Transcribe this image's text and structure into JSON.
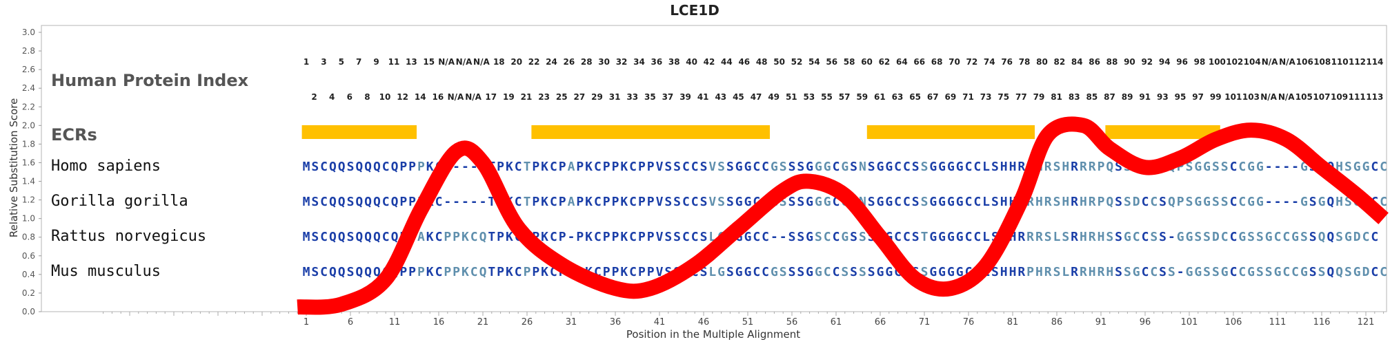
{
  "chart_data": {
    "type": "line",
    "title": "LCE1D",
    "xlabel": "Position in the Multiple Alignment",
    "ylabel": "Relative Substitution Score",
    "ylim": [
      0,
      3.0
    ],
    "xlim": [
      1,
      123
    ],
    "y_ticks": [
      "0.0",
      "0.2",
      "0.4",
      "0.6",
      "0.8",
      "1.0",
      "1.2",
      "1.4",
      "1.6",
      "1.8",
      "2.0",
      "2.2",
      "2.4",
      "2.6",
      "2.8",
      "3.0"
    ],
    "x_ticks": [
      1,
      6,
      11,
      16,
      21,
      26,
      31,
      36,
      41,
      46,
      51,
      56,
      61,
      66,
      71,
      76,
      81,
      86,
      91,
      96,
      101,
      106,
      111,
      116,
      121
    ],
    "grid": false,
    "series": [
      {
        "color": "#ff0000",
        "x": [
          0,
          5,
          10,
          14,
          18,
          21,
          25,
          30,
          36,
          40,
          45,
          50,
          55,
          58,
          62,
          66,
          70,
          74,
          78,
          82,
          85,
          89,
          92,
          96,
          100,
          104,
          108,
          112,
          116,
          120,
          123
        ],
        "y": [
          0.05,
          0.08,
          0.35,
          1.1,
          1.72,
          1.6,
          0.9,
          0.5,
          0.25,
          0.25,
          0.5,
          0.9,
          1.3,
          1.4,
          1.25,
          0.8,
          0.35,
          0.25,
          0.5,
          1.2,
          1.9,
          2.0,
          1.75,
          1.55,
          1.65,
          1.85,
          1.95,
          1.85,
          1.55,
          1.25,
          1.0
        ]
      }
    ],
    "ecrs": [
      [
        1,
        13
      ],
      [
        27,
        53
      ],
      [
        65,
        83
      ],
      [
        92,
        104
      ]
    ],
    "ecr_color": "#ffc000",
    "human_index_row1": [
      "1",
      "3",
      "5",
      "7",
      "9",
      "11",
      "13",
      "15",
      "N/A",
      "N/A",
      "N/A",
      "18",
      "20",
      "22",
      "24",
      "26",
      "28",
      "30",
      "32",
      "34",
      "36",
      "38",
      "40",
      "42",
      "44",
      "46",
      "48",
      "50",
      "52",
      "54",
      "56",
      "58",
      "60",
      "62",
      "64",
      "66",
      "68",
      "70",
      "72",
      "74",
      "76",
      "78",
      "80",
      "82",
      "84",
      "86",
      "88",
      "90",
      "92",
      "94",
      "96",
      "98",
      "100",
      "102",
      "104",
      "N/A",
      "N/A",
      "106",
      "108",
      "110",
      "112",
      "114"
    ],
    "human_index_row2": [
      "2",
      "4",
      "6",
      "8",
      "10",
      "12",
      "14",
      "16",
      "N/A",
      "N/A",
      "17",
      "19",
      "21",
      "23",
      "25",
      "27",
      "29",
      "31",
      "33",
      "35",
      "37",
      "39",
      "41",
      "43",
      "45",
      "47",
      "49",
      "51",
      "53",
      "55",
      "57",
      "59",
      "61",
      "63",
      "65",
      "67",
      "69",
      "71",
      "73",
      "75",
      "77",
      "79",
      "81",
      "83",
      "85",
      "87",
      "89",
      "91",
      "93",
      "95",
      "97",
      "99",
      "101",
      "103",
      "N/A",
      "N/A",
      "105",
      "107",
      "109",
      "111",
      "113"
    ],
    "row_headers": {
      "index": "Human Protein Index",
      "ecrs": "ECRs"
    },
    "alignment": [
      {
        "species": "Homo sapiens",
        "sequence": "MSCQQSQQQCQPPPKC-----TPKCTPKCPAPKCPPKCPPVSSCCSVSSGGCCGSSSGGGCGSNSGGCCSSGGGGCCLSHHRRHRSHRRRPQSSDCCSQPSGGSSCCGG----GSSQHSGGCC"
      },
      {
        "species": "Gorilla gorilla",
        "sequence": "MSCQQSQQQCQPPPKC-----TPKCTPKCPAPKCPPKCPPVSSCCSVSSGGCCGSSSGGGCGSNSGGCCSSGGGGCCLSHHRRHRSHRHRPQSSDCCSQPSGGSSCCGG----GSGQHSGGCC"
      },
      {
        "species": "Rattus norvegicus",
        "sequence": "MSCQQSQQQCQPPAKCPPKCQTPKCPPKCP-PKCPPKCPPVSSCCSLGSGGCC--SSGSCCGSSSGGCCSTGGGGCCLSHHRRRSLSRHRHSSGCCSS-GGSSDCCGSSGCCGSSQQSGDCC"
      },
      {
        "species": "Mus musculus",
        "sequence": "MSCQQSQQQCQPPPKCPPKCQTPKCPPKCP-PKCPPKCPPVSSCCSLGSGGCCGSSSGGCCSSSSGGCCSSGGGGCCLSHHRPHRSLRRHRHSSGCCSS-GGSSGCCGSSGCCGSSQQSGDCC"
      }
    ],
    "residue_colors": {
      "conserved": "#1a3ea8",
      "variable": "#5f8fad",
      "gap": "#1a3ea8"
    }
  }
}
